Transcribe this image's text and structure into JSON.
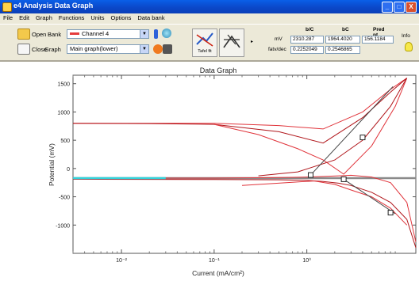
{
  "window": {
    "title": "e4 Analysis Data Graph",
    "controls": [
      "_",
      "□",
      "X"
    ]
  },
  "menu": [
    "File",
    "Edit",
    "Graph",
    "Functions",
    "Units",
    "Options",
    "Data bank"
  ],
  "toolbar": {
    "open_label": "Open",
    "close_label": "Close",
    "bank_label": "Bank",
    "graph_label": "Graph",
    "bank_value": "Channel 4",
    "graph_value": "Main graph(lower)",
    "big_button_1_caption": "Tafel fit",
    "readout": {
      "col_headers": [
        "b/C",
        "bC",
        "Pred pt"
      ],
      "row_labels": [
        "mV",
        "fatv/dec"
      ],
      "row1": [
        "2310.287",
        "1964.4020",
        "156.1184"
      ],
      "row2": [
        "0.2252049",
        "0.2546865"
      ],
      "side_label": "Info"
    }
  },
  "colors": {
    "curve": "#e0333a",
    "curve_dark": "#b0151a",
    "fit_line": "#444444",
    "baseline": "#8a8a8a",
    "cyan": "#33d1d9"
  },
  "chart_data": {
    "type": "line",
    "title": "Data Graph",
    "xlabel": "Current (mA/cm²)",
    "ylabel": "Potential (mV)",
    "xscale": "log",
    "xlim": [
      0.003,
      15
    ],
    "ylim": [
      -1500,
      1650
    ],
    "x_ticks": [
      0.01,
      0.1,
      1
    ],
    "x_tick_labels": [
      "10⁻²",
      "10⁻¹",
      "10⁰"
    ],
    "y_ticks": [
      1500,
      1000,
      500,
      0,
      -500,
      -1000
    ],
    "y_tick_labels": [
      "1500",
      "1000",
      "500",
      "0",
      "-500",
      "-1000"
    ],
    "grid": false,
    "series": [
      {
        "x": [
          0.003,
          0.02,
          0.1,
          0.5,
          1.5,
          4,
          8,
          12
        ],
        "y": [
          800,
          800,
          800,
          760,
          700,
          1000,
          1400,
          1600
        ]
      },
      {
        "x": [
          0.003,
          0.02,
          0.1,
          0.5,
          1.5,
          4,
          8,
          12
        ],
        "y": [
          800,
          795,
          780,
          650,
          450,
          900,
          1350,
          1600
        ]
      },
      {
        "x": [
          0.1,
          0.3,
          0.8,
          1.5,
          2.5,
          5,
          9,
          12
        ],
        "y": [
          780,
          600,
          350,
          150,
          -100,
          400,
          1100,
          1600
        ]
      },
      {
        "x": [
          0.3,
          0.8,
          2,
          4,
          8,
          12
        ],
        "y": [
          -130,
          -60,
          150,
          500,
          1100,
          1600
        ]
      },
      {
        "x": [
          0.003,
          0.1,
          0.5,
          1,
          1.5,
          2.2,
          3,
          5,
          8,
          12,
          15
        ],
        "y": [
          -170,
          -170,
          -160,
          -150,
          -140,
          -130,
          -120,
          -150,
          -250,
          -600,
          -1300
        ]
      },
      {
        "x": [
          0.003,
          0.1,
          0.5,
          1,
          1.5,
          2.2,
          3,
          5,
          8,
          12,
          15
        ],
        "y": [
          -190,
          -195,
          -200,
          -210,
          -230,
          -260,
          -300,
          -420,
          -600,
          -900,
          -1400
        ]
      },
      {
        "x": [
          0.2,
          0.6,
          1.2,
          2,
          3,
          5,
          8,
          12
        ],
        "y": [
          -300,
          -250,
          -220,
          -280,
          -380,
          -500,
          -700,
          -1000
        ]
      }
    ],
    "cyan_segment": {
      "x": [
        0.003,
        0.03
      ],
      "y": [
        -170,
        -170
      ]
    },
    "baseline": {
      "y": -170
    },
    "fit_lines": [
      {
        "x": [
          1.1,
          8.5
        ],
        "y": [
          -115,
          1450
        ]
      },
      {
        "x": [
          2.5,
          9
        ],
        "y": [
          -190,
          -800
        ]
      }
    ],
    "markers": [
      {
        "x": 1.1,
        "y": -115
      },
      {
        "x": 2.5,
        "y": -190
      },
      {
        "x": 4.0,
        "y": 550
      },
      {
        "x": 8.0,
        "y": -780
      }
    ]
  }
}
